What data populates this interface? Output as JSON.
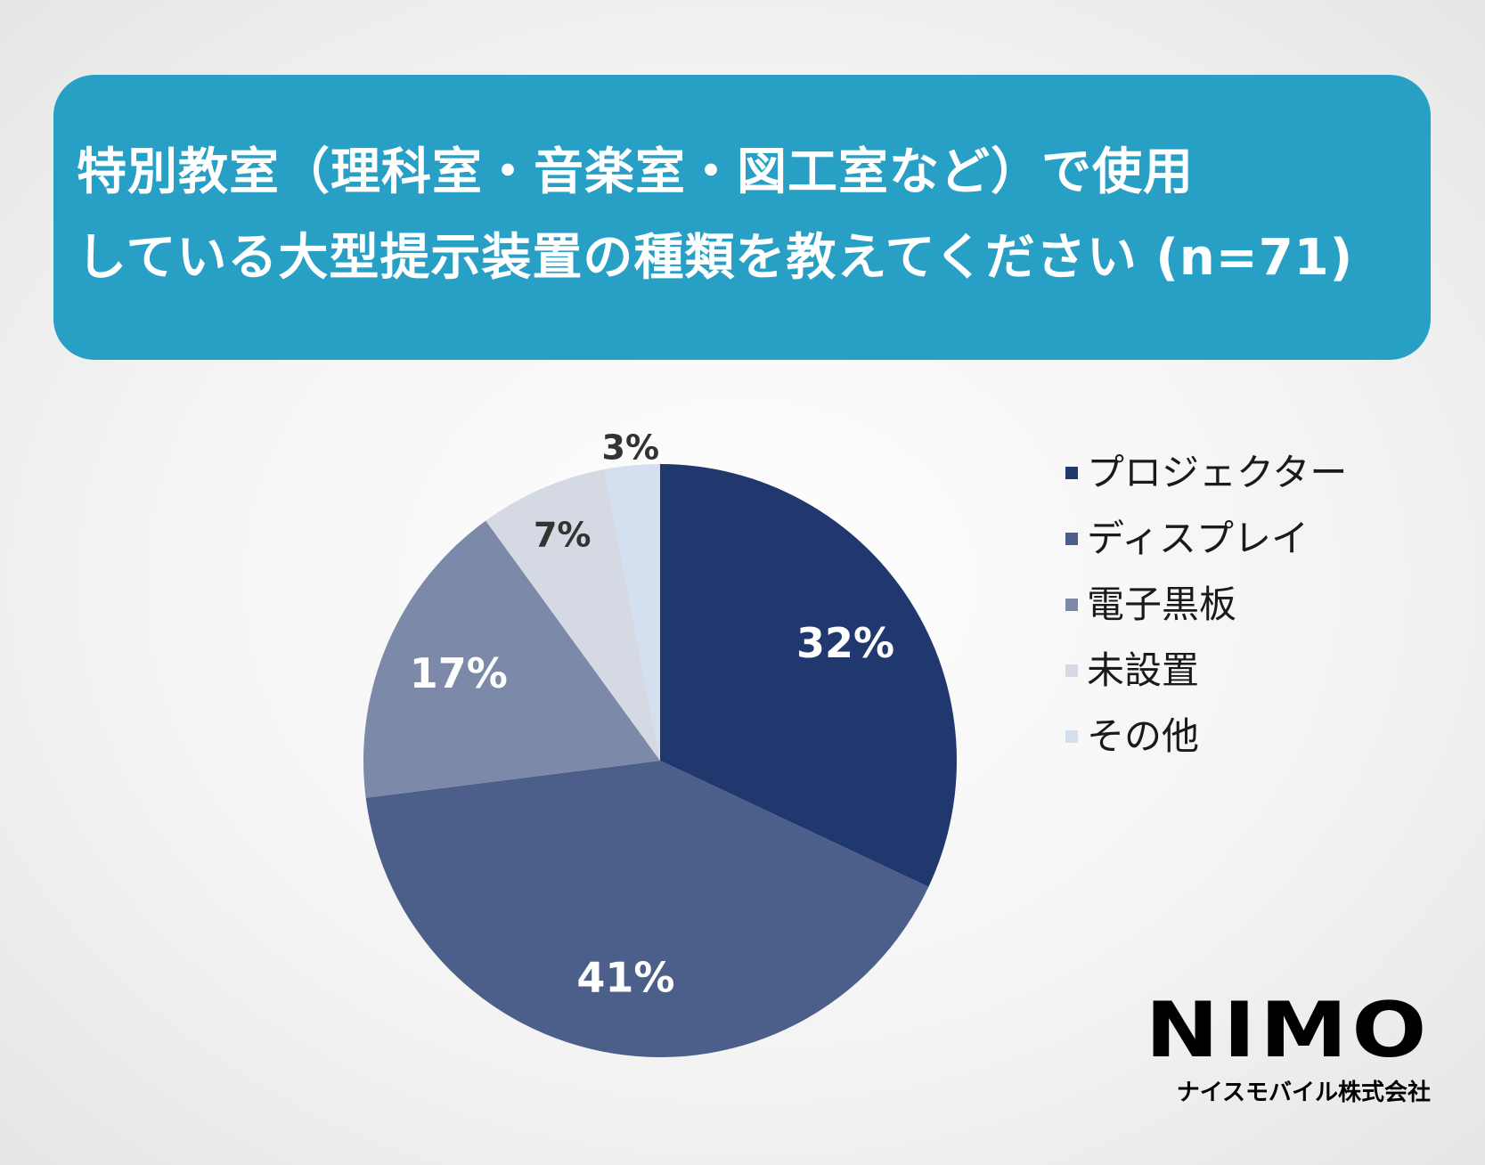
{
  "title": {
    "line1": "特別教室（理科室・音楽室・図工室など）で使用",
    "line2": "している大型提示装置の種類を教えてください (n=71)"
  },
  "logo": {
    "mark": "NIMO",
    "company": "ナイスモバイル株式会社"
  },
  "chart_data": {
    "type": "pie",
    "title": "特別教室（理科室・音楽室・図工室など）で使用している大型提示装置の種類を教えてください (n=71)",
    "start_angle_deg": 0,
    "direction": "clockwise",
    "legend_position": "right",
    "slices": [
      {
        "label": "プロジェクター",
        "value": 32,
        "display": "32%",
        "color": "#21386e",
        "label_color": "#ffffff"
      },
      {
        "label": "ディスプレイ",
        "value": 41,
        "display": "41%",
        "color": "#4c5f8a",
        "label_color": "#ffffff"
      },
      {
        "label": "電子黒板",
        "value": 17,
        "display": "17%",
        "color": "#7c89a9",
        "label_color": "#ffffff"
      },
      {
        "label": "未設置",
        "value": 7,
        "display": "7%",
        "color": "#d5d9e3",
        "label_color": "#333333"
      },
      {
        "label": "その他",
        "value": 3,
        "display": "3%",
        "color": "#d4dff0",
        "label_color": "#333333"
      }
    ]
  }
}
